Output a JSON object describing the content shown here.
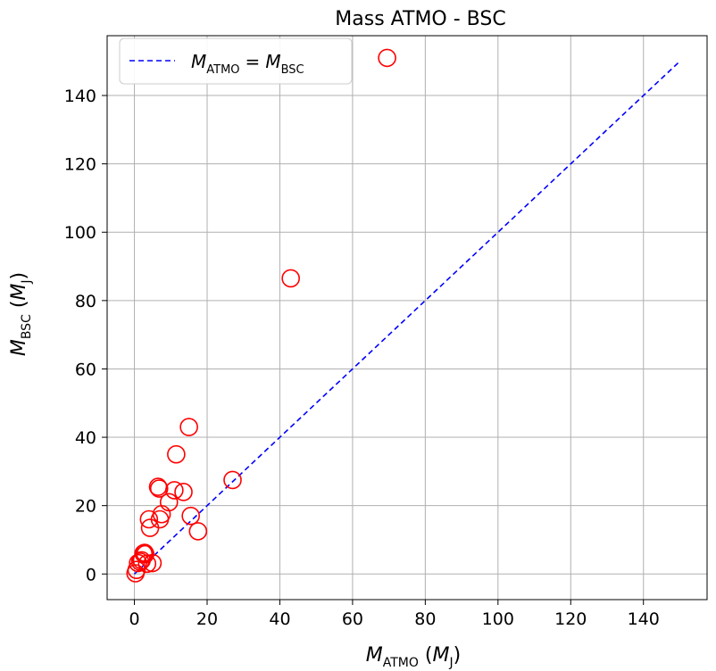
{
  "chart_data": {
    "type": "scatter",
    "title": "Mass ATMO - BSC",
    "xlabel": {
      "base": "M",
      "sub": "ATMO",
      "unit_base": "M",
      "unit_sub": "J"
    },
    "ylabel": {
      "base": "M",
      "sub": "BSC",
      "unit_base": "M",
      "unit_sub": "J"
    },
    "xlim": [
      -7.5,
      157.5
    ],
    "ylim": [
      -7.5,
      157.5
    ],
    "xticks": [
      0,
      20,
      40,
      60,
      80,
      100,
      120,
      140
    ],
    "yticks": [
      0,
      20,
      40,
      60,
      80,
      100,
      120,
      140
    ],
    "grid": true,
    "legend": {
      "placement": "top-left",
      "entries": [
        {
          "left_base": "M",
          "left_sub": "ATMO",
          "equals": "=",
          "right_base": "M",
          "right_sub": "BSC"
        }
      ]
    },
    "series": [
      {
        "kind": "line",
        "style": "dashed",
        "color": "#0000ff",
        "x": [
          0,
          150
        ],
        "y": [
          0,
          150
        ]
      },
      {
        "kind": "scatter",
        "marker": "hollow-circle",
        "color": "#ff0000",
        "x": [
          0.3,
          0.6,
          1.0,
          1.6,
          2.0,
          2.5,
          2.8,
          3.0,
          3.5,
          4.0,
          4.3,
          5.0,
          6.5,
          6.8,
          7.0,
          7.5,
          9.5,
          11.0,
          11.5,
          13.5,
          15.0,
          15.5,
          17.5,
          27.0,
          43.0,
          69.5
        ],
        "y": [
          0.2,
          1.2,
          3.2,
          3.6,
          4.0,
          6.0,
          6.2,
          5.8,
          3.0,
          16.0,
          13.5,
          3.2,
          25.5,
          25.0,
          16.0,
          17.5,
          21.0,
          24.5,
          35.0,
          24.0,
          43.0,
          17.0,
          12.5,
          27.5,
          86.5,
          151.0
        ]
      }
    ],
    "colors": {
      "line": "#0000ff",
      "marker": "#ff0000",
      "grid": "#b0b0b0",
      "axes": "#000000"
    }
  }
}
